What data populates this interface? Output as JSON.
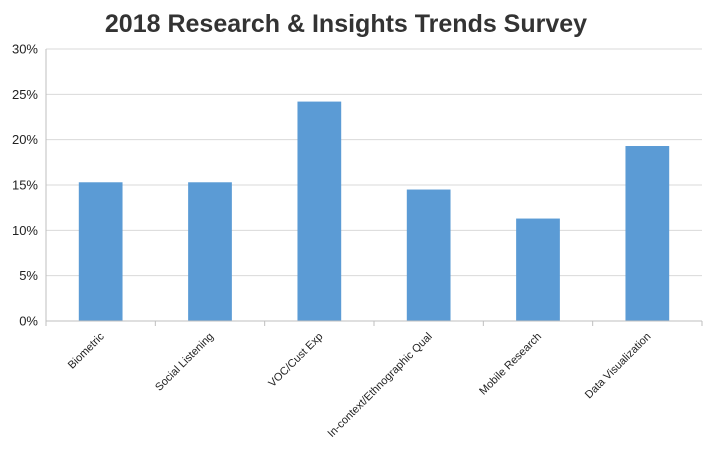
{
  "chart_data": {
    "type": "bar",
    "title": "2018 Research & Insights Trends Survey",
    "xlabel": "",
    "ylabel": "",
    "categories": [
      "Biometric",
      "Social Listening",
      "VOC/Cust Exp",
      "In-context/Ethnographic Qual",
      "Mobile Research",
      "Data Visualization"
    ],
    "values": [
      15.3,
      15.3,
      24.2,
      14.5,
      11.3,
      19.3
    ],
    "value_format": "percent",
    "ylim": [
      0,
      30
    ],
    "yticks": [
      0,
      5,
      10,
      15,
      20,
      25,
      30
    ],
    "ytick_labels": [
      "0%",
      "5%",
      "10%",
      "15%",
      "20%",
      "25%",
      "30%"
    ],
    "grid": true,
    "legend": "none",
    "colors": {
      "bar": "#5B9BD5",
      "grid": "#d9d9d9",
      "axis": "#bfbfbf",
      "text": "#222222",
      "title": "#333333"
    }
  }
}
